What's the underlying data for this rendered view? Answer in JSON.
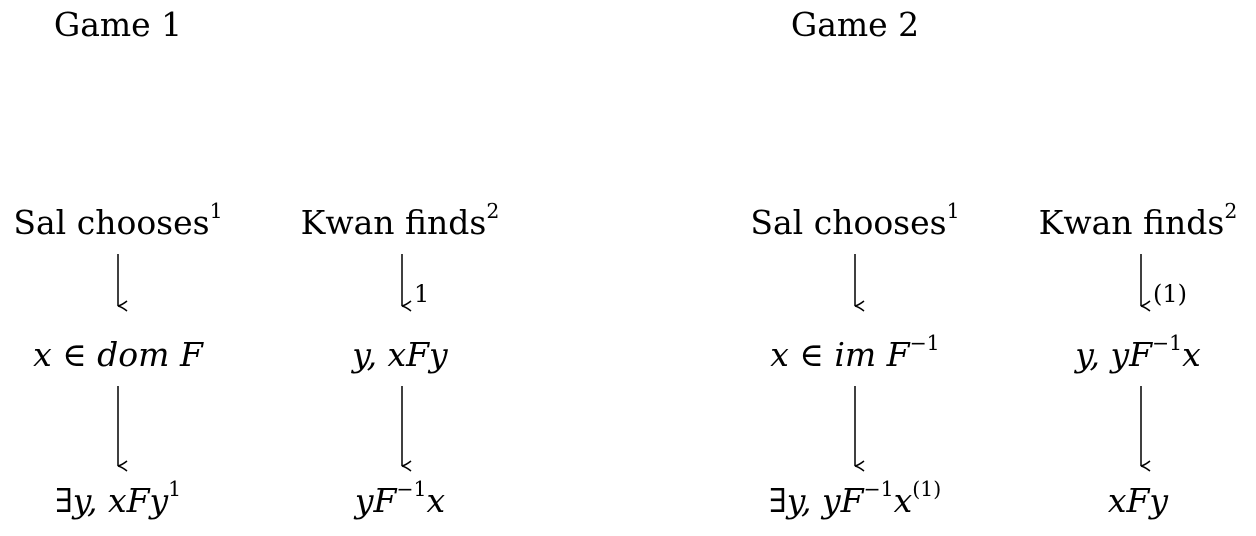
{
  "game1": {
    "title": "Game 1",
    "left": {
      "header": "Sal chooses",
      "header_sup": "1",
      "node1": "x ∈ dom F",
      "node2_pre": "∃y, xFy",
      "node2_sup": "1"
    },
    "right": {
      "header": "Kwan finds",
      "header_sup": "2",
      "arrow_label": "1",
      "node1": "y, xFy",
      "node2_pre": "yF",
      "node2_sup": "−1",
      "node2_post": "x"
    }
  },
  "game2": {
    "title": "Game 2",
    "left": {
      "header": "Sal chooses",
      "header_sup": "1",
      "node1_pre": "x ∈ im F",
      "node1_sup": "−1",
      "node2_pre": "∃y, yF",
      "node2_sup": "−1",
      "node2_mid": "x",
      "node2_sup2": "(1)"
    },
    "right": {
      "header": "Kwan finds",
      "header_sup": "2",
      "arrow_label": "(1)",
      "node1_pre": "y, yF",
      "node1_sup": "−1",
      "node1_post": "x",
      "node2": "xFy"
    }
  }
}
